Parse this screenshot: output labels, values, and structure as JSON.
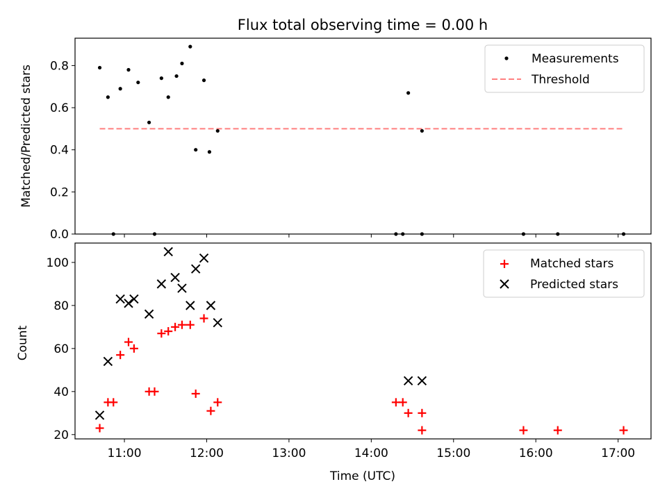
{
  "figure": {
    "title": "Flux total observing time = 0.00 h"
  },
  "chart_data": [
    {
      "type": "scatter",
      "ylabel": "Matched/Predicted stars",
      "xlabel": "",
      "xlim": [
        "10:24",
        "17:24"
      ],
      "ylim": [
        0,
        0.93
      ],
      "yticks": [
        0.0,
        0.2,
        0.4,
        0.6,
        0.8
      ],
      "ytick_labels": [
        "0.0",
        "0.2",
        "0.4",
        "0.6",
        "0.8"
      ],
      "grid": false,
      "legend": {
        "placement": "top-right",
        "entries": [
          "Measurements",
          "Threshold"
        ]
      },
      "series": [
        {
          "name": "Measurements",
          "marker": "dot",
          "color": "#000000",
          "points": [
            {
              "x": "10:42",
              "y": 0.79
            },
            {
              "x": "10:48",
              "y": 0.65
            },
            {
              "x": "10:57",
              "y": 0.69
            },
            {
              "x": "11:03",
              "y": 0.78
            },
            {
              "x": "11:10",
              "y": 0.72
            },
            {
              "x": "11:18",
              "y": 0.53
            },
            {
              "x": "11:27",
              "y": 0.74
            },
            {
              "x": "11:32",
              "y": 0.65
            },
            {
              "x": "11:38",
              "y": 0.75
            },
            {
              "x": "11:42",
              "y": 0.81
            },
            {
              "x": "11:48",
              "y": 0.89
            },
            {
              "x": "11:52",
              "y": 0.4
            },
            {
              "x": "11:58",
              "y": 0.73
            },
            {
              "x": "12:02",
              "y": 0.39
            },
            {
              "x": "12:08",
              "y": 0.49
            },
            {
              "x": "14:27",
              "y": 0.67
            },
            {
              "x": "14:37",
              "y": 0.49
            },
            {
              "x": "10:52",
              "y": 0.0
            },
            {
              "x": "11:22",
              "y": 0.0
            },
            {
              "x": "14:18",
              "y": 0.0
            },
            {
              "x": "14:23",
              "y": 0.0
            },
            {
              "x": "14:37",
              "y": 0.0
            },
            {
              "x": "15:51",
              "y": 0.0
            },
            {
              "x": "16:16",
              "y": 0.0
            },
            {
              "x": "17:04",
              "y": 0.0
            }
          ]
        },
        {
          "name": "Threshold",
          "marker": "dashed-line",
          "color": "#ff7f7f",
          "x_range": [
            "10:42",
            "17:04"
          ],
          "y": 0.5
        }
      ]
    },
    {
      "type": "scatter",
      "ylabel": "Count",
      "xlabel": "Time (UTC)",
      "xlim": [
        "10:24",
        "17:24"
      ],
      "ylim": [
        18,
        109
      ],
      "yticks": [
        20,
        40,
        60,
        80,
        100
      ],
      "ytick_labels": [
        "20",
        "40",
        "60",
        "80",
        "100"
      ],
      "xticks": [
        "11:00",
        "12:00",
        "13:00",
        "14:00",
        "15:00",
        "16:00",
        "17:00"
      ],
      "grid": false,
      "legend": {
        "placement": "top-right",
        "entries": [
          "Matched stars",
          "Predicted stars"
        ]
      },
      "series": [
        {
          "name": "Matched stars",
          "marker": "plus",
          "color": "#ff0000",
          "points": [
            {
              "x": "10:42",
              "y": 23
            },
            {
              "x": "10:48",
              "y": 35
            },
            {
              "x": "10:52",
              "y": 35
            },
            {
              "x": "10:57",
              "y": 57
            },
            {
              "x": "11:03",
              "y": 63
            },
            {
              "x": "11:07",
              "y": 60
            },
            {
              "x": "11:18",
              "y": 40
            },
            {
              "x": "11:22",
              "y": 40
            },
            {
              "x": "11:27",
              "y": 67
            },
            {
              "x": "11:32",
              "y": 68
            },
            {
              "x": "11:37",
              "y": 70
            },
            {
              "x": "11:42",
              "y": 71
            },
            {
              "x": "11:48",
              "y": 71
            },
            {
              "x": "11:52",
              "y": 39
            },
            {
              "x": "11:58",
              "y": 74
            },
            {
              "x": "12:03",
              "y": 31
            },
            {
              "x": "12:08",
              "y": 35
            },
            {
              "x": "14:18",
              "y": 35
            },
            {
              "x": "14:23",
              "y": 35
            },
            {
              "x": "14:27",
              "y": 30
            },
            {
              "x": "14:37",
              "y": 30
            },
            {
              "x": "14:37",
              "y": 22
            },
            {
              "x": "15:51",
              "y": 22
            },
            {
              "x": "16:16",
              "y": 22
            },
            {
              "x": "17:04",
              "y": 22
            }
          ]
        },
        {
          "name": "Predicted stars",
          "marker": "x",
          "color": "#000000",
          "points": [
            {
              "x": "10:42",
              "y": 29
            },
            {
              "x": "10:48",
              "y": 54
            },
            {
              "x": "10:57",
              "y": 83
            },
            {
              "x": "11:03",
              "y": 81
            },
            {
              "x": "11:07",
              "y": 83
            },
            {
              "x": "11:18",
              "y": 76
            },
            {
              "x": "11:27",
              "y": 90
            },
            {
              "x": "11:32",
              "y": 105
            },
            {
              "x": "11:37",
              "y": 93
            },
            {
              "x": "11:42",
              "y": 88
            },
            {
              "x": "11:48",
              "y": 80
            },
            {
              "x": "11:52",
              "y": 97
            },
            {
              "x": "11:58",
              "y": 102
            },
            {
              "x": "12:03",
              "y": 80
            },
            {
              "x": "12:08",
              "y": 72
            },
            {
              "x": "14:27",
              "y": 45
            },
            {
              "x": "14:37",
              "y": 45
            }
          ]
        }
      ]
    }
  ]
}
